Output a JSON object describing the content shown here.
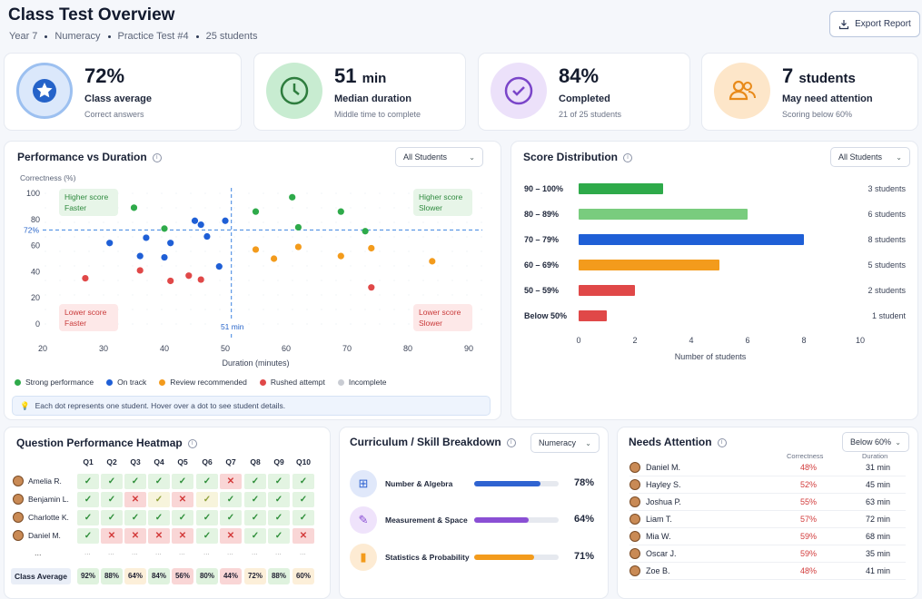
{
  "header": {
    "title": "Class Test Overview",
    "crumbs": [
      "Year 7",
      "Numeracy",
      "Practice Test #4",
      "25 students"
    ],
    "export_label": "Export Report"
  },
  "kpis": [
    {
      "value": "72%",
      "unit": "",
      "label": "Class average",
      "sub": "Correct answers",
      "icon": "star-badge-icon",
      "color": "#2563c9"
    },
    {
      "value": "51",
      "unit": "min",
      "label": "Median duration",
      "sub": "Middle time to complete",
      "icon": "clock-icon",
      "color": "#2e9a4d"
    },
    {
      "value": "84%",
      "unit": "",
      "label": "Completed",
      "sub": "21 of 25 students",
      "icon": "check-circle-icon",
      "color": "#7a45c9"
    },
    {
      "value": "7",
      "unit": "students",
      "label": "May need attention",
      "sub": "Scoring below 60%",
      "icon": "users-icon",
      "color": "#e88a1a"
    }
  ],
  "perf": {
    "title": "Performance vs Duration",
    "filter": "All Students",
    "ylabel": "Correctness (%)",
    "xlabel": "Duration (minutes)",
    "quadrants": {
      "tl": [
        "Higher score",
        "Faster"
      ],
      "tr": [
        "Higher score",
        "Slower"
      ],
      "bl": [
        "Lower score",
        "Faster"
      ],
      "br": [
        "Lower score",
        "Slower"
      ]
    },
    "median_y_label": "72%",
    "median_x_label": "51 min",
    "legend": [
      {
        "label": "Strong performance",
        "color": "#2eaa4a"
      },
      {
        "label": "On track",
        "color": "#1f5fd6"
      },
      {
        "label": "Review recommended",
        "color": "#f39b1c"
      },
      {
        "label": "Rushed attempt",
        "color": "#e04848"
      },
      {
        "label": "Incomplete",
        "color": "#c9ccd3"
      }
    ],
    "note": "Each dot represents one student. Hover over a dot to see student details."
  },
  "chart_data": [
    {
      "type": "scatter",
      "title": "Performance vs Duration",
      "xlabel": "Duration (minutes)",
      "ylabel": "Correctness (%)",
      "xticks": [
        20,
        30,
        40,
        50,
        60,
        70,
        80,
        90
      ],
      "yticks": [
        0,
        20,
        40,
        60,
        80,
        100
      ],
      "ref_lines": {
        "y": 72,
        "x": 51
      },
      "series": [
        {
          "name": "Strong performance",
          "points": [
            [
              35,
              89
            ],
            [
              40,
              73
            ],
            [
              55,
              86
            ],
            [
              61,
              97
            ],
            [
              62,
              74
            ],
            [
              69,
              86
            ],
            [
              73,
              71
            ]
          ]
        },
        {
          "name": "On track",
          "points": [
            [
              31,
              62
            ],
            [
              36,
              52
            ],
            [
              37,
              66
            ],
            [
              40,
              51
            ],
            [
              41,
              62
            ],
            [
              45,
              79
            ],
            [
              46,
              76
            ],
            [
              47,
              67
            ],
            [
              49,
              44
            ],
            [
              50,
              79
            ]
          ]
        },
        {
          "name": "Review recommended",
          "points": [
            [
              55,
              57
            ],
            [
              58,
              50
            ],
            [
              62,
              59
            ],
            [
              69,
              52
            ],
            [
              74,
              58
            ],
            [
              84,
              48
            ]
          ]
        },
        {
          "name": "Rushed attempt",
          "points": [
            [
              27,
              35
            ],
            [
              36,
              41
            ],
            [
              41,
              33
            ],
            [
              44,
              37
            ],
            [
              46,
              34
            ],
            [
              74,
              28
            ]
          ]
        }
      ]
    },
    {
      "type": "bar",
      "title": "Score Distribution",
      "categories": [
        "90 – 100%",
        "80 – 89%",
        "70 – 79%",
        "60 – 69%",
        "50 – 59%",
        "Below 50%"
      ],
      "values": [
        3,
        6,
        8,
        5,
        2,
        1
      ],
      "xlabel": "Number of students",
      "xticks": [
        0,
        2,
        4,
        6,
        8,
        10
      ],
      "value_labels": [
        "3 students",
        "6 students",
        "8 students",
        "5 students",
        "2 students",
        "1 student"
      ],
      "colors": [
        "#2eaa4a",
        "#79cc7e",
        "#1f5fd6",
        "#f39b1c",
        "#e04848",
        "#e04848"
      ]
    }
  ],
  "dist": {
    "title": "Score Distribution",
    "filter": "All Students"
  },
  "heatmap": {
    "title": "Question Performance Heatmap",
    "questions": [
      "Q1",
      "Q2",
      "Q3",
      "Q4",
      "Q5",
      "Q6",
      "Q7",
      "Q8",
      "Q9",
      "Q10"
    ],
    "rows": [
      {
        "name": "Amelia R.",
        "cells": [
          "g",
          "g",
          "g",
          "g",
          "g",
          "g",
          "r",
          "g",
          "g",
          "g"
        ]
      },
      {
        "name": "Benjamin L.",
        "cells": [
          "g",
          "g",
          "r",
          "y",
          "r",
          "y",
          "g",
          "g",
          "g",
          "g"
        ]
      },
      {
        "name": "Charlotte K.",
        "cells": [
          "g",
          "g",
          "g",
          "g",
          "g",
          "g",
          "g",
          "g",
          "g",
          "g"
        ]
      },
      {
        "name": "Daniel M.",
        "cells": [
          "g",
          "r",
          "r",
          "r",
          "r",
          "g",
          "r",
          "g",
          "g",
          "r"
        ]
      }
    ],
    "ellipsis": "...",
    "avg_label": "Class Average",
    "averages": [
      "92%",
      "88%",
      "64%",
      "84%",
      "56%",
      "80%",
      "44%",
      "72%",
      "88%",
      "60%"
    ]
  },
  "skills": {
    "title": "Curriculum / Skill Breakdown",
    "filter": "Numeracy",
    "items": [
      {
        "name": "Number & Algebra",
        "pct": "78%",
        "value": 0.78,
        "color": "#2f63d1",
        "icon": "calculator-icon"
      },
      {
        "name": "Measurement & Space",
        "pct": "64%",
        "value": 0.64,
        "color": "#8a4fd4",
        "icon": "ruler-icon"
      },
      {
        "name": "Statistics & Probability",
        "pct": "71%",
        "value": 0.71,
        "color": "#f39b1c",
        "icon": "bar-chart-icon"
      }
    ]
  },
  "attention": {
    "title": "Needs Attention",
    "filter": "Below 60%",
    "col1": "Correctness",
    "col2": "Duration",
    "rows": [
      {
        "name": "Daniel M.",
        "score": "48%",
        "time": "31 min"
      },
      {
        "name": "Hayley S.",
        "score": "52%",
        "time": "45 min"
      },
      {
        "name": "Joshua P.",
        "score": "55%",
        "time": "63 min"
      },
      {
        "name": "Liam T.",
        "score": "57%",
        "time": "72 min"
      },
      {
        "name": "Mia W.",
        "score": "59%",
        "time": "68 min"
      },
      {
        "name": "Oscar J.",
        "score": "59%",
        "time": "35 min"
      },
      {
        "name": "Zoe B.",
        "score": "48%",
        "time": "41 min"
      }
    ]
  }
}
